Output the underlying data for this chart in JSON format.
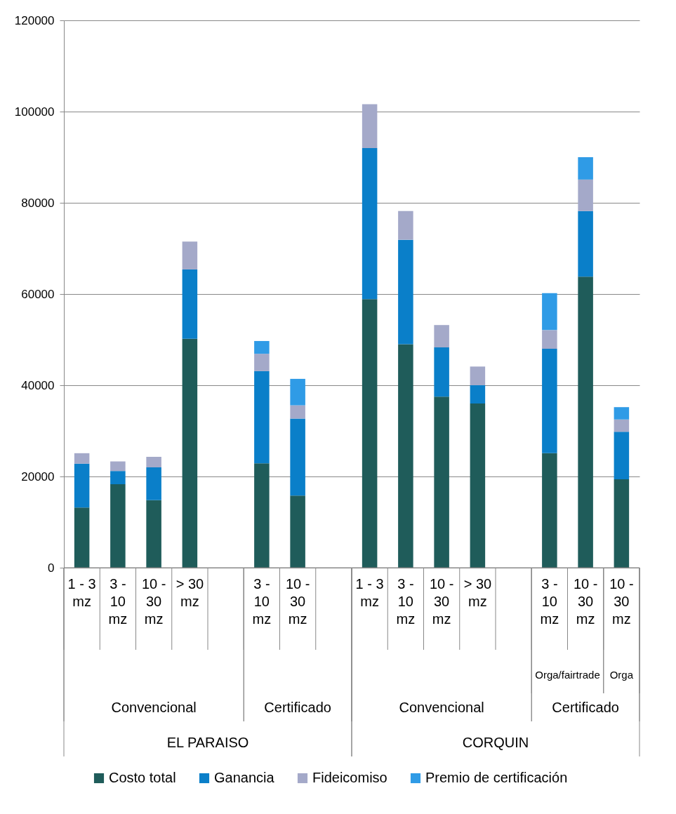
{
  "chart_data": {
    "type": "bar",
    "stacked": true,
    "categories": [
      "1 - 3 mz",
      "3 - 10 mz",
      "10 - 30 mz",
      "> 30 mz",
      null,
      "3 - 10 mz",
      "10 - 30 mz",
      null,
      "1 - 3 mz",
      "3 - 10 mz",
      "10 - 30 mz",
      "> 30 mz",
      null,
      "3 - 10 mz",
      "10 - 30 mz",
      "10 - 30 mz"
    ],
    "series": [
      {
        "name": "Costo total",
        "color": "#1f5c5a",
        "values": [
          13200,
          18300,
          14800,
          50200,
          null,
          22900,
          15800,
          null,
          58900,
          49000,
          37500,
          36000,
          null,
          25100,
          63800,
          19400
        ]
      },
      {
        "name": "Ganancia",
        "color": "#0a7fc9",
        "values": [
          9600,
          2900,
          7200,
          15200,
          null,
          20200,
          16900,
          null,
          33100,
          22900,
          10800,
          4000,
          null,
          22900,
          14400,
          10400
        ]
      },
      {
        "name": "Fideicomiso",
        "color": "#a4a9c9",
        "values": [
          2300,
          2100,
          2300,
          6100,
          null,
          3800,
          2900,
          null,
          9600,
          6300,
          4900,
          4100,
          null,
          4100,
          6900,
          2700
        ]
      },
      {
        "name": "Premio de certificación",
        "color": "#2f9be6",
        "values": [
          null,
          null,
          null,
          null,
          null,
          2800,
          5800,
          null,
          null,
          null,
          null,
          null,
          null,
          8100,
          4900,
          2700
        ]
      }
    ],
    "ylim": [
      0,
      120000
    ],
    "yticks": [
      0,
      20000,
      40000,
      60000,
      80000,
      100000,
      120000
    ],
    "grid": "y",
    "legend": "bottom",
    "annotations": [
      "Orga/fairtrade",
      "Orga",
      "Convencional",
      "Certificado",
      "Convencional",
      "Certificado",
      "EL PARAISO",
      "CORQUIN"
    ]
  }
}
